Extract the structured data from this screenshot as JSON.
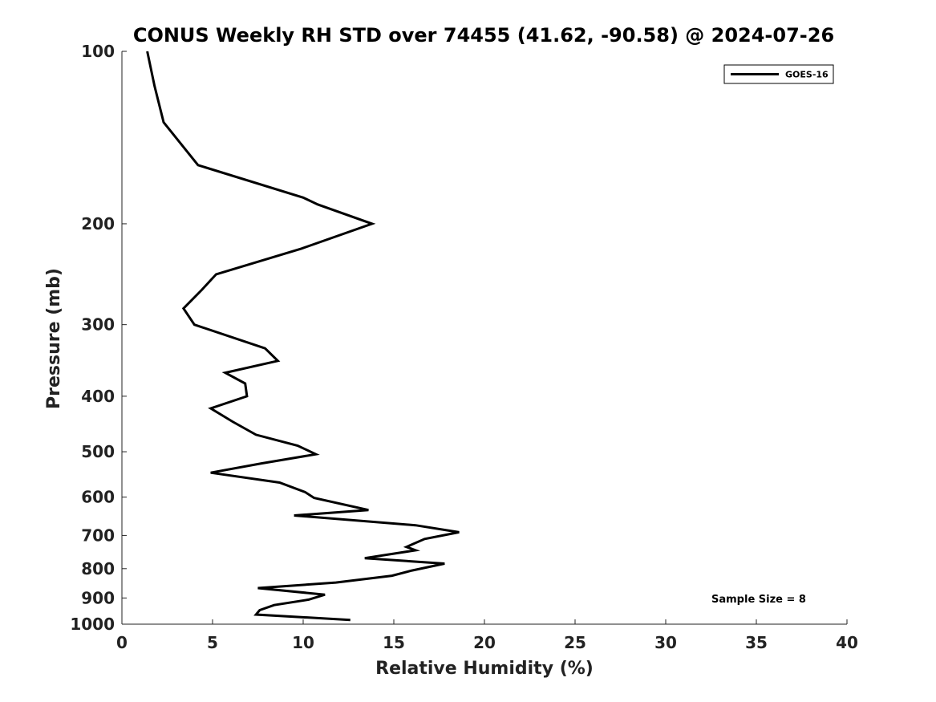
{
  "chart_data": {
    "type": "line",
    "title": "CONUS Weekly RH STD over 74455 (41.62, -90.58) @ 2024-07-26",
    "xlabel": "Relative Humidity (%)",
    "ylabel": "Pressure (mb)",
    "xlim": [
      0,
      40
    ],
    "ylim": [
      1000,
      100
    ],
    "y_scale": "log",
    "y_inverted": true,
    "grid": false,
    "legend_position": "top-right",
    "x_ticks": [
      "0",
      "5",
      "10",
      "15",
      "20",
      "25",
      "30",
      "35",
      "40"
    ],
    "y_ticks": [
      "100",
      "200",
      "300",
      "400",
      "500",
      "600",
      "700",
      "800",
      "900",
      "1000"
    ],
    "series": [
      {
        "name": "GOES-16",
        "color": "#000000",
        "points": [
          [
            1.4,
            100
          ],
          [
            1.8,
            115
          ],
          [
            2.3,
            133
          ],
          [
            4.2,
            158
          ],
          [
            10.0,
            180
          ],
          [
            10.8,
            185
          ],
          [
            13.8,
            200
          ],
          [
            9.9,
            221
          ],
          [
            5.2,
            245
          ],
          [
            4.4,
            261
          ],
          [
            3.4,
            281
          ],
          [
            4.0,
            300
          ],
          [
            7.9,
            330
          ],
          [
            8.6,
            347
          ],
          [
            5.7,
            364
          ],
          [
            6.8,
            380
          ],
          [
            6.9,
            400
          ],
          [
            4.9,
            420
          ],
          [
            6.1,
            443
          ],
          [
            7.4,
            467
          ],
          [
            9.7,
            488
          ],
          [
            10.7,
            505
          ],
          [
            7.7,
            524
          ],
          [
            4.9,
            544
          ],
          [
            8.7,
            566
          ],
          [
            10.1,
            588
          ],
          [
            10.6,
            602
          ],
          [
            13.6,
            632
          ],
          [
            9.5,
            646
          ],
          [
            16.2,
            672
          ],
          [
            18.6,
            691
          ],
          [
            16.7,
            710
          ],
          [
            15.7,
            733
          ],
          [
            16.2,
            743
          ],
          [
            13.4,
            767
          ],
          [
            17.8,
            784
          ],
          [
            16.0,
            806
          ],
          [
            14.9,
            823
          ],
          [
            11.8,
            846
          ],
          [
            7.5,
            865
          ],
          [
            11.2,
            888
          ],
          [
            10.3,
            906
          ],
          [
            8.4,
            926
          ],
          [
            7.6,
            945
          ],
          [
            7.4,
            962
          ],
          [
            12.6,
            983
          ]
        ]
      }
    ],
    "annotation": "Sample Size = 8"
  }
}
